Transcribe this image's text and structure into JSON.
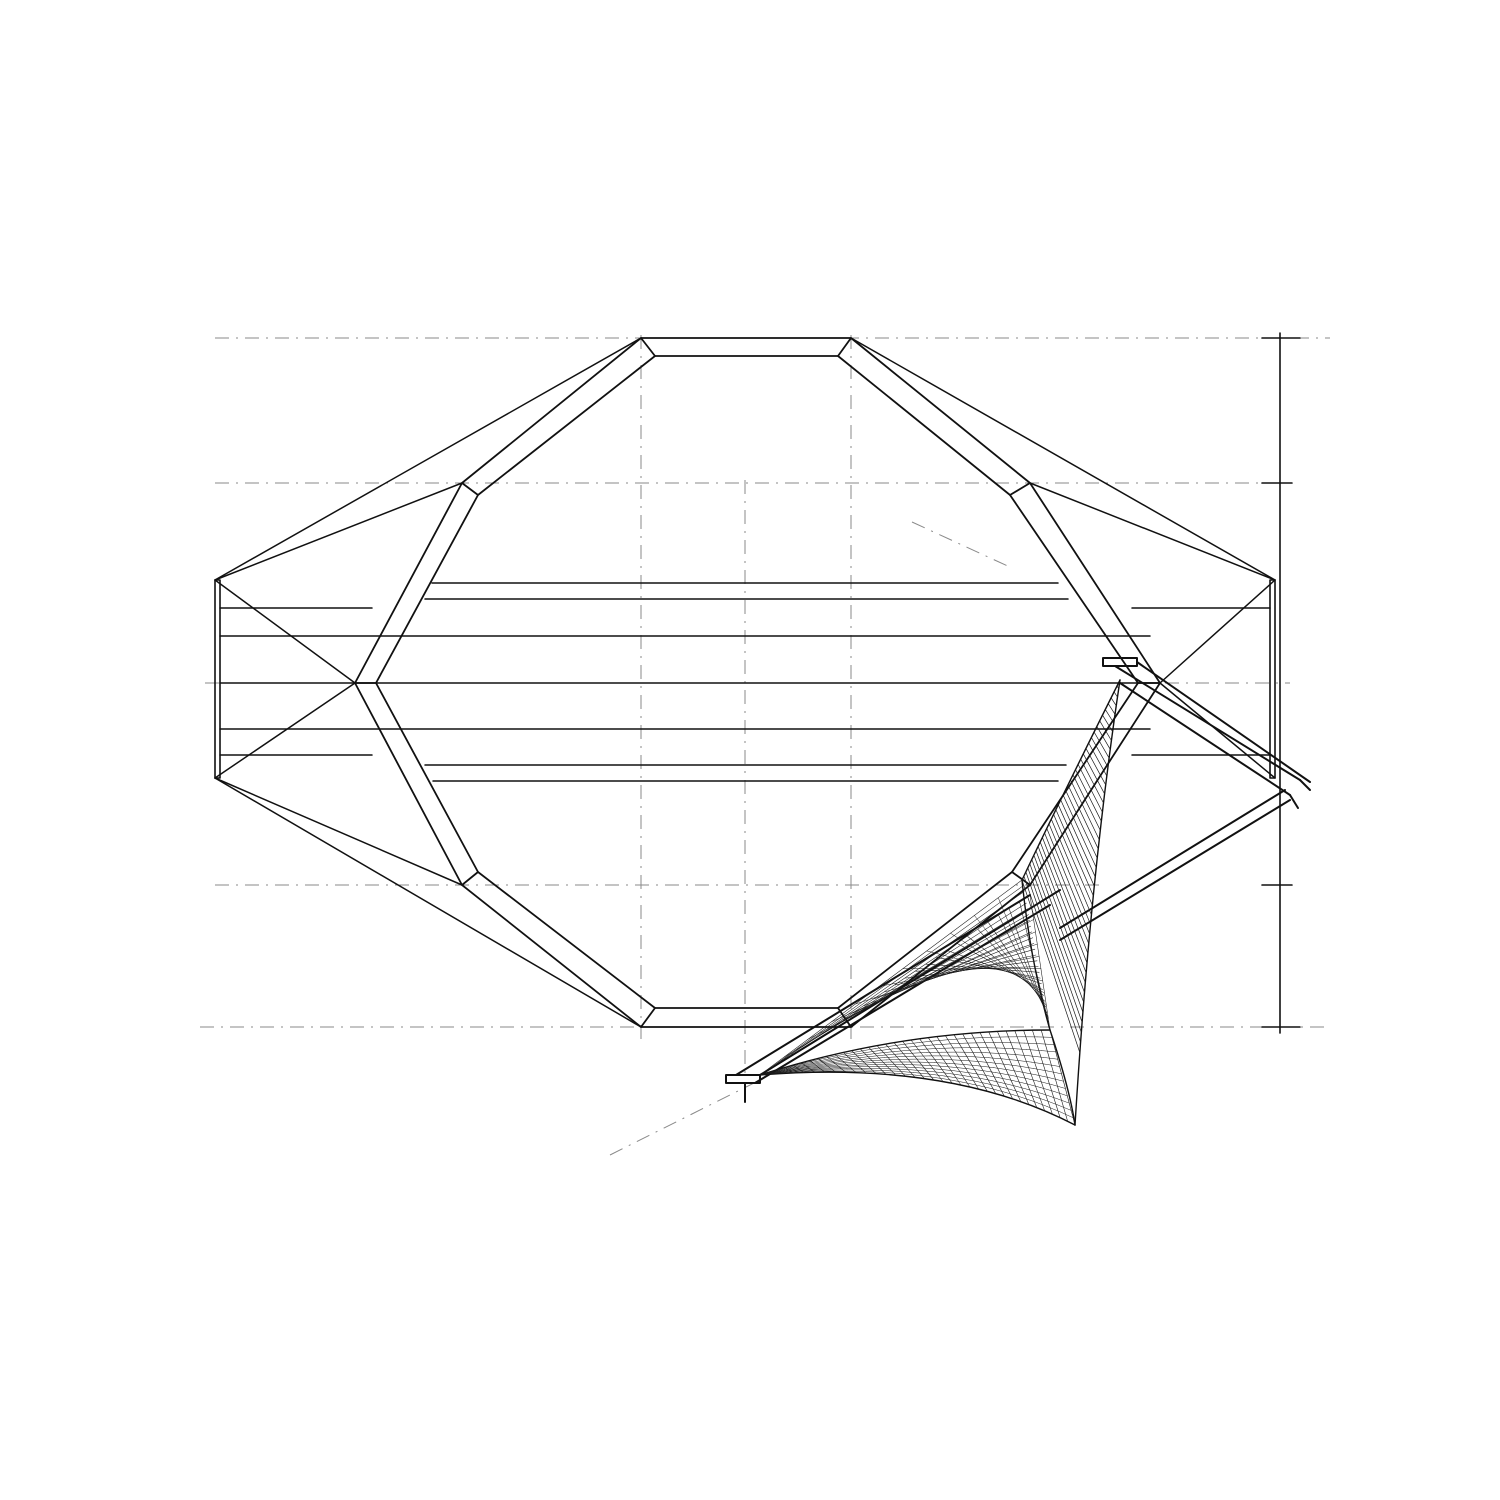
{
  "drawing": {
    "ink_color": "#111111",
    "construction_color": "#8a8a8a",
    "hatch_color": "#1a1a1a",
    "background_color": "#ffffff"
  }
}
